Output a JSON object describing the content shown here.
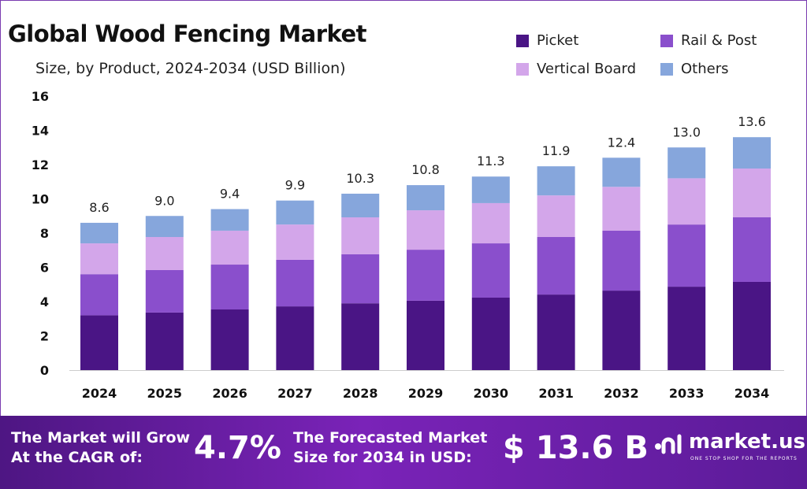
{
  "chart_data": {
    "type": "bar",
    "stacked": true,
    "title": "Global Wood Fencing Market",
    "subtitle": "Size, by Product, 2024-2034 (USD Billion)",
    "categories": [
      "2024",
      "2025",
      "2026",
      "2027",
      "2028",
      "2029",
      "2030",
      "2031",
      "2032",
      "2033",
      "2034"
    ],
    "series": [
      {
        "name": "Picket",
        "color": "#4a1585",
        "values": [
          3.2,
          3.36,
          3.54,
          3.72,
          3.9,
          4.05,
          4.23,
          4.41,
          4.64,
          4.87,
          5.15
        ]
      },
      {
        "name": "Rail & Post",
        "color": "#8a4fcc",
        "values": [
          2.4,
          2.48,
          2.62,
          2.72,
          2.86,
          2.98,
          3.17,
          3.36,
          3.5,
          3.63,
          3.77
        ]
      },
      {
        "name": "Vertical Board",
        "color": "#d3a6ea",
        "values": [
          1.8,
          1.93,
          1.98,
          2.06,
          2.16,
          2.3,
          2.35,
          2.43,
          2.56,
          2.7,
          2.85
        ]
      },
      {
        "name": "Others",
        "color": "#86a6dc",
        "values": [
          1.2,
          1.23,
          1.26,
          1.4,
          1.38,
          1.47,
          1.55,
          1.7,
          1.7,
          1.8,
          1.83
        ]
      }
    ],
    "totals": [
      "8.6",
      "9.0",
      "9.4",
      "9.9",
      "10.3",
      "10.8",
      "11.3",
      "11.9",
      "12.4",
      "13.0",
      "13.6"
    ],
    "yticks": [
      "0",
      "2",
      "4",
      "6",
      "8",
      "10",
      "12",
      "14",
      "16"
    ],
    "ylim": [
      0,
      16
    ],
    "grid": false,
    "legend_placement": "top-right"
  },
  "footer": {
    "cagr_label_1": "The Market will Grow",
    "cagr_label_2": "At the CAGR of:",
    "cagr_value": "4.7%",
    "forecast_label_1": "The Forecasted Market",
    "forecast_label_2": "Size for 2034 in USD:",
    "forecast_value": "$ 13.6 B",
    "logo_text": "market.us",
    "logo_tagline": "ONE STOP SHOP FOR THE REPORTS"
  }
}
